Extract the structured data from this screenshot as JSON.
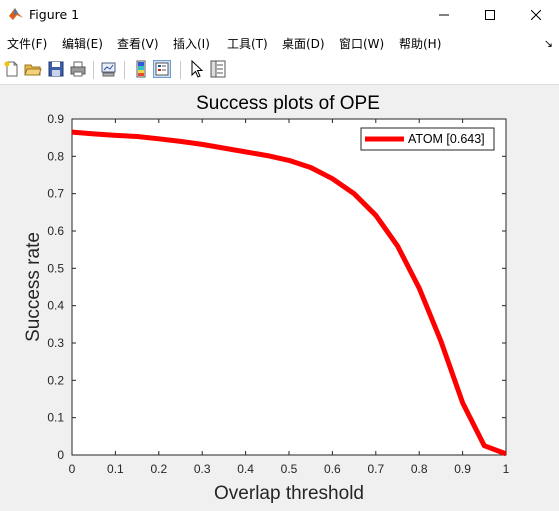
{
  "window": {
    "title": "Figure 1"
  },
  "menu": [
    "文件(F)",
    "编辑(E)",
    "查看(V)",
    "插入(I)",
    "工具(T)",
    "桌面(D)",
    "窗口(W)",
    "帮助(H)"
  ],
  "toolbar": [
    "new-figure",
    "open-file",
    "save",
    "print",
    "link-plot",
    "insert-colorbar",
    "insert-legend",
    "edit-plot",
    "property-inspector"
  ],
  "colors": {
    "line": "#ff0000",
    "figure_bg": "#f0f0f0",
    "axes_bg": "#ffffff"
  },
  "chart_data": {
    "type": "line",
    "title": "Success plots of OPE",
    "xlabel": "Overlap threshold",
    "ylabel": "Success rate",
    "xlim": [
      0,
      1
    ],
    "ylim": [
      0,
      0.9
    ],
    "xticks": [
      "0",
      "0.1",
      "0.2",
      "0.3",
      "0.4",
      "0.5",
      "0.6",
      "0.7",
      "0.8",
      "0.9",
      "1"
    ],
    "yticks": [
      "0",
      "0.1",
      "0.2",
      "0.3",
      "0.4",
      "0.5",
      "0.6",
      "0.7",
      "0.8",
      "0.9"
    ],
    "grid": false,
    "legend_position": "top-right",
    "series": [
      {
        "name": "ATOM [0.643]",
        "color": "#ff0000",
        "x": [
          0,
          0.05,
          0.1,
          0.15,
          0.2,
          0.25,
          0.3,
          0.35,
          0.4,
          0.45,
          0.5,
          0.55,
          0.6,
          0.65,
          0.7,
          0.75,
          0.8,
          0.85,
          0.9,
          0.95,
          1
        ],
        "y": [
          0.865,
          0.86,
          0.856,
          0.853,
          0.847,
          0.84,
          0.832,
          0.822,
          0.812,
          0.802,
          0.789,
          0.77,
          0.74,
          0.7,
          0.642,
          0.56,
          0.447,
          0.305,
          0.14,
          0.025,
          0.003
        ]
      }
    ]
  }
}
